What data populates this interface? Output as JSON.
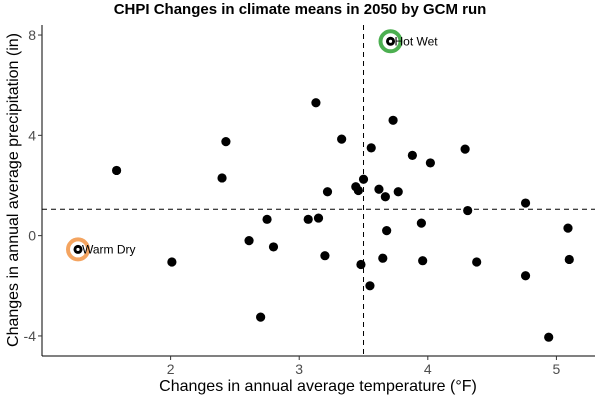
{
  "chart_data": {
    "type": "scatter",
    "title": "CHPI Changes in climate means in 2050 by GCM run",
    "xlabel": "Changes in annual average temperature (°F)",
    "ylabel": "Changes in annual average precipitation (in)",
    "xlim": [
      1.0,
      5.3
    ],
    "ylim": [
      -4.8,
      8.4
    ],
    "xticks": [
      2,
      3,
      4,
      5
    ],
    "yticks": [
      -4,
      0,
      4,
      8
    ],
    "grid": false,
    "reference_lines": {
      "vertical_x": 3.5,
      "horizontal_y": 1.05
    },
    "points": [
      {
        "x": 1.58,
        "y": 2.6
      },
      {
        "x": 2.01,
        "y": -1.05
      },
      {
        "x": 2.4,
        "y": 2.3
      },
      {
        "x": 2.43,
        "y": 3.75
      },
      {
        "x": 2.61,
        "y": -0.2
      },
      {
        "x": 2.7,
        "y": -3.25
      },
      {
        "x": 2.75,
        "y": 0.65
      },
      {
        "x": 2.8,
        "y": -0.45
      },
      {
        "x": 3.07,
        "y": 0.65
      },
      {
        "x": 3.13,
        "y": 5.3
      },
      {
        "x": 3.15,
        "y": 0.7
      },
      {
        "x": 3.2,
        "y": -0.8
      },
      {
        "x": 3.22,
        "y": 1.75
      },
      {
        "x": 3.33,
        "y": 3.85
      },
      {
        "x": 3.44,
        "y": 1.95
      },
      {
        "x": 3.46,
        "y": 1.8
      },
      {
        "x": 3.48,
        "y": -1.15
      },
      {
        "x": 3.5,
        "y": 2.25
      },
      {
        "x": 3.55,
        "y": -2.0
      },
      {
        "x": 3.56,
        "y": 3.5
      },
      {
        "x": 3.62,
        "y": 1.85
      },
      {
        "x": 3.65,
        "y": -0.9
      },
      {
        "x": 3.67,
        "y": 1.55
      },
      {
        "x": 3.68,
        "y": 0.2
      },
      {
        "x": 3.73,
        "y": 4.6
      },
      {
        "x": 3.77,
        "y": 1.75
      },
      {
        "x": 3.88,
        "y": 3.2
      },
      {
        "x": 3.95,
        "y": 0.5
      },
      {
        "x": 3.96,
        "y": -1.0
      },
      {
        "x": 4.02,
        "y": 2.9
      },
      {
        "x": 4.29,
        "y": 3.45
      },
      {
        "x": 4.31,
        "y": 1.0
      },
      {
        "x": 4.38,
        "y": -1.05
      },
      {
        "x": 4.76,
        "y": 1.3
      },
      {
        "x": 4.76,
        "y": -1.6
      },
      {
        "x": 4.94,
        "y": -4.05
      },
      {
        "x": 5.09,
        "y": 0.3
      },
      {
        "x": 5.1,
        "y": -0.95
      },
      {
        "x": 1.28,
        "y": -0.55,
        "label": "Warm Dry",
        "ring_color": "#F4A460"
      },
      {
        "x": 3.71,
        "y": 7.75,
        "label": "Hot Wet",
        "ring_color": "#4CAF50"
      }
    ]
  }
}
